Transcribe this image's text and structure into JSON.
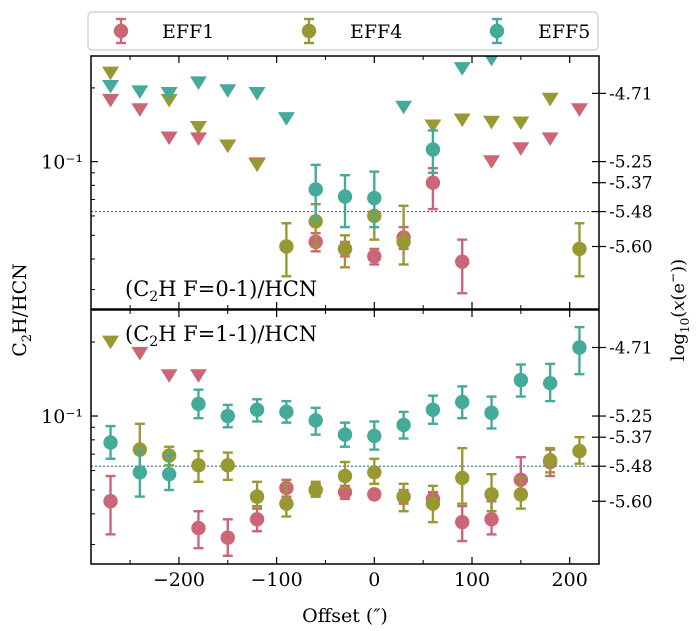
{
  "chart_data": {
    "type": "scatter",
    "legend": {
      "placement": "top",
      "entries": [
        {
          "label": "EFF1",
          "color": "#cc6677"
        },
        {
          "label": "EFF4",
          "color": "#999933"
        },
        {
          "label": "EFF5",
          "color": "#44aa99"
        }
      ]
    },
    "xlabel": "Offset (″)",
    "x_ticks": [
      -200,
      -100,
      0,
      100,
      200
    ],
    "x_tick_labels": [
      "−200",
      "−100",
      "0",
      "100",
      "200"
    ],
    "xlim": [
      -290,
      230
    ],
    "ylabel": "C2H/HCN",
    "ylabel_right": "log10(x(e⁻))",
    "y_scale": "log",
    "guide_line_value": 0.0625,
    "panels": [
      {
        "annotation": "(C2H F=0-1)/HCN",
        "ylim": [
          0.025,
          0.27
        ],
        "y_tick_label": "10⁻¹",
        "right_axis_ticks": [
          {
            "label": "-4.71",
            "at": 0.19
          },
          {
            "label": "-5.25",
            "at": 0.1
          },
          {
            "label": "-5.37",
            "at": 0.082
          },
          {
            "label": "-5.48",
            "at": 0.0625
          },
          {
            "label": "-5.60",
            "at": 0.045
          }
        ],
        "series": [
          {
            "name": "EFF1",
            "color": "#cc6677",
            "points": [
              [
                -60,
                0.047,
                0.043,
                0.051
              ],
              [
                -30,
                0.044,
                0.041,
                0.047
              ],
              [
                0,
                0.041,
                0.038,
                0.044
              ],
              [
                30,
                0.049,
                0.044,
                0.054
              ],
              [
                60,
                0.082,
                0.064,
                0.094
              ],
              [
                90,
                0.039,
                0.029,
                0.048
              ]
            ],
            "limits": [
              [
                -270,
                0.178
              ],
              [
                -240,
                0.163
              ],
              [
                -210,
                0.125
              ],
              [
                -180,
                0.124
              ],
              [
                -150,
                0.116
              ],
              [
                -120,
                0.098
              ],
              [
                120,
                0.1
              ],
              [
                150,
                0.113
              ],
              [
                180,
                0.124
              ],
              [
                210,
                0.163
              ]
            ]
          },
          {
            "name": "EFF4",
            "color": "#999933",
            "points": [
              [
                -90,
                0.045,
                0.034,
                0.056
              ],
              [
                -60,
                0.057,
                0.045,
                0.067
              ],
              [
                -30,
                0.044,
                0.037,
                0.05
              ],
              [
                0,
                0.06,
                0.048,
                0.07
              ],
              [
                30,
                0.047,
                0.038,
                0.066
              ],
              [
                210,
                0.044,
                0.034,
                0.056
              ]
            ],
            "limits": [
              [
                -270,
                0.23
              ],
              [
                -210,
                0.178
              ],
              [
                -180,
                0.138
              ],
              [
                -150,
                0.116
              ],
              [
                -120,
                0.097
              ],
              [
                60,
                0.14
              ],
              [
                90,
                0.148
              ],
              [
                120,
                0.145
              ],
              [
                150,
                0.144
              ],
              [
                180,
                0.18
              ]
            ]
          },
          {
            "name": "EFF5",
            "color": "#44aa99",
            "points": [
              [
                -60,
                0.077,
                0.058,
                0.097
              ],
              [
                -30,
                0.072,
                0.054,
                0.088
              ],
              [
                0,
                0.071,
                0.054,
                0.091
              ],
              [
                60,
                0.112,
                0.09,
                0.134
              ]
            ],
            "limits": [
              [
                -270,
                0.203
              ],
              [
                -240,
                0.193
              ],
              [
                -210,
                0.19
              ],
              [
                -180,
                0.21
              ],
              [
                -150,
                0.195
              ],
              [
                -120,
                0.19
              ],
              [
                -90,
                0.15
              ],
              [
                30,
                0.167
              ],
              [
                90,
                0.24
              ],
              [
                120,
                0.262
              ]
            ]
          }
        ]
      },
      {
        "annotation": "(C2H F=1-1)/HCN",
        "ylim": [
          0.025,
          0.27
        ],
        "y_tick_label": "10⁻¹",
        "right_axis_ticks": [
          {
            "label": "-4.71",
            "at": 0.19
          },
          {
            "label": "-5.25",
            "at": 0.1
          },
          {
            "label": "-5.37",
            "at": 0.082
          },
          {
            "label": "-5.48",
            "at": 0.0625
          },
          {
            "label": "-5.60",
            "at": 0.045
          }
        ],
        "series": [
          {
            "name": "EFF1",
            "color": "#cc6677",
            "points": [
              [
                -270,
                0.045,
                0.033,
                0.057
              ],
              [
                -180,
                0.035,
                0.029,
                0.041
              ],
              [
                -150,
                0.032,
                0.027,
                0.038
              ],
              [
                -120,
                0.038,
                0.034,
                0.042
              ],
              [
                -90,
                0.051,
                0.047,
                0.055
              ],
              [
                -60,
                0.05,
                0.047,
                0.053
              ],
              [
                -30,
                0.049,
                0.046,
                0.052
              ],
              [
                0,
                0.048,
                0.046,
                0.05
              ],
              [
                30,
                0.047,
                0.044,
                0.05
              ],
              [
                60,
                0.046,
                0.043,
                0.049
              ],
              [
                90,
                0.037,
                0.031,
                0.043
              ],
              [
                120,
                0.038,
                0.033,
                0.045
              ],
              [
                150,
                0.055,
                0.046,
                0.068
              ],
              [
                180,
                0.065,
                0.057,
                0.073
              ]
            ],
            "limits": [
              [
                -240,
                0.18
              ],
              [
                -210,
                0.146
              ],
              [
                -180,
                0.146
              ]
            ]
          },
          {
            "name": "EFF4",
            "color": "#999933",
            "points": [
              [
                -240,
                0.073,
                0.058,
                0.093
              ],
              [
                -210,
                0.069,
                0.063,
                0.075
              ],
              [
                -180,
                0.063,
                0.054,
                0.072
              ],
              [
                -150,
                0.063,
                0.055,
                0.071
              ],
              [
                -120,
                0.047,
                0.043,
                0.054
              ],
              [
                -90,
                0.044,
                0.039,
                0.053
              ],
              [
                -60,
                0.05,
                0.047,
                0.054
              ],
              [
                -30,
                0.057,
                0.051,
                0.065
              ],
              [
                0,
                0.059,
                0.053,
                0.067
              ],
              [
                30,
                0.047,
                0.041,
                0.053
              ],
              [
                60,
                0.044,
                0.037,
                0.052
              ],
              [
                90,
                0.056,
                0.044,
                0.074
              ],
              [
                120,
                0.048,
                0.041,
                0.058
              ],
              [
                150,
                0.048,
                0.042,
                0.056
              ],
              [
                180,
                0.066,
                0.059,
                0.074
              ],
              [
                210,
                0.072,
                0.064,
                0.082
              ]
            ],
            "limits": [
              [
                -270,
                0.2
              ]
            ]
          },
          {
            "name": "EFF5",
            "color": "#44aa99",
            "points": [
              [
                -270,
                0.078,
                0.067,
                0.091
              ],
              [
                -240,
                0.059,
                0.047,
                0.072
              ],
              [
                -210,
                0.058,
                0.05,
                0.07
              ],
              [
                -180,
                0.112,
                0.098,
                0.128
              ],
              [
                -150,
                0.1,
                0.09,
                0.111
              ],
              [
                -120,
                0.106,
                0.095,
                0.117
              ],
              [
                -90,
                0.104,
                0.094,
                0.115
              ],
              [
                -60,
                0.096,
                0.084,
                0.108
              ],
              [
                -30,
                0.084,
                0.075,
                0.094
              ],
              [
                0,
                0.083,
                0.073,
                0.095
              ],
              [
                30,
                0.092,
                0.081,
                0.104
              ],
              [
                60,
                0.106,
                0.093,
                0.121
              ],
              [
                90,
                0.114,
                0.098,
                0.132
              ],
              [
                120,
                0.103,
                0.089,
                0.12
              ],
              [
                150,
                0.14,
                0.12,
                0.162
              ],
              [
                180,
                0.136,
                0.115,
                0.163
              ],
              [
                210,
                0.19,
                0.148,
                0.23
              ]
            ],
            "limits": []
          }
        ]
      }
    ]
  }
}
